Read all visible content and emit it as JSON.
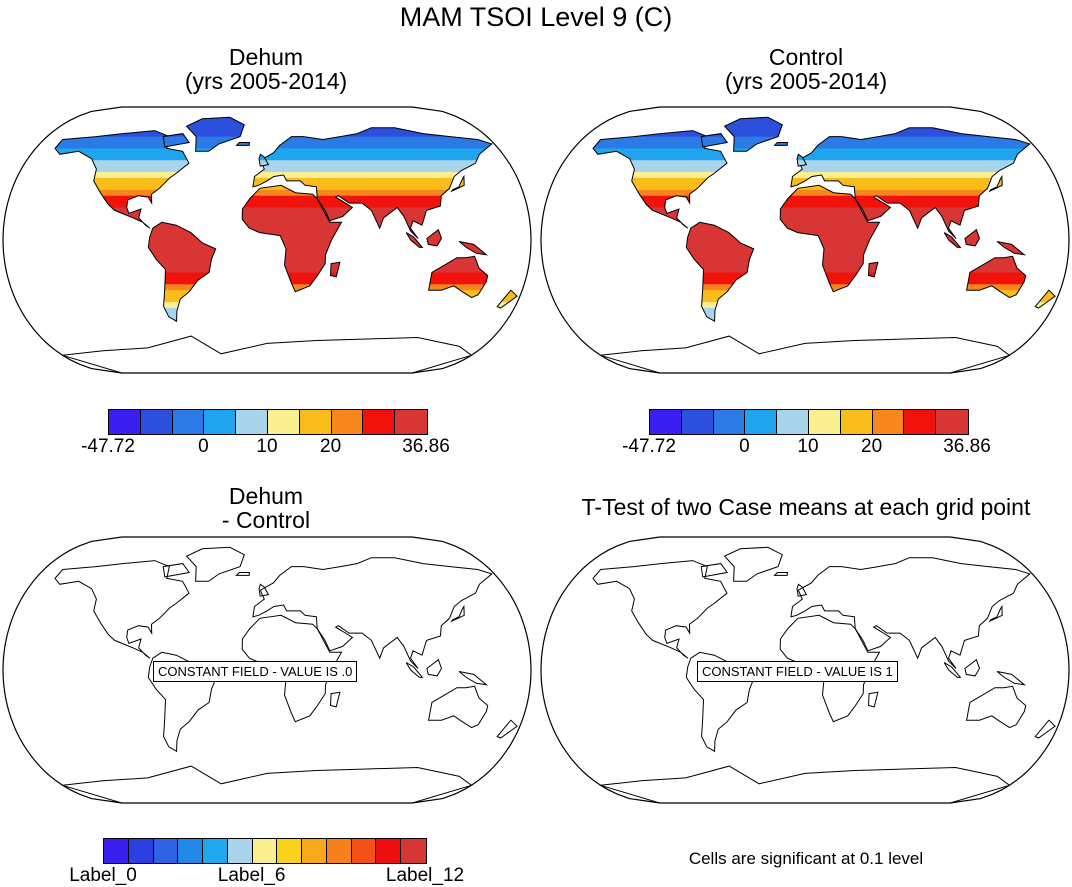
{
  "title": "MAM TSOI Level 9 (C)",
  "panels": [
    {
      "title_line1": "Dehum",
      "title_line2": "(yrs 2005-2014)"
    },
    {
      "title_line1": "Control",
      "title_line2": "(yrs 2005-2014)"
    },
    {
      "title_line1": "Dehum",
      "title_line2": "- Control",
      "constant_label": "CONSTANT FIELD - VALUE IS .0"
    },
    {
      "title_line1": "T-Test of two Case means at each grid point",
      "constant_label": "CONSTANT FIELD - VALUE IS 1"
    }
  ],
  "colorbar_top": {
    "colors": [
      "#3a1ff0",
      "#2c4fdd",
      "#2b7ae6",
      "#1fa4ee",
      "#a8d4ec",
      "#fbf08f",
      "#f9bd1b",
      "#f7861d",
      "#f2120c",
      "#d83535"
    ],
    "labels": [
      "-47.72",
      "0",
      "10",
      "20",
      "36.86"
    ],
    "label_slots": [
      0,
      3,
      5,
      7,
      10
    ]
  },
  "colorbar_diff": {
    "colors": [
      "#3a1ff0",
      "#2c3fe0",
      "#2f63e3",
      "#2288e6",
      "#1fa8ee",
      "#a8d4ec",
      "#fbf08f",
      "#f9d21b",
      "#f9a81b",
      "#f7801d",
      "#f4501a",
      "#ee1010",
      "#d83535"
    ],
    "labels": [
      "Label_0",
      "Label_6",
      "Label_12"
    ],
    "label_slots": [
      0,
      6,
      13
    ]
  },
  "footnote": "Cells are significant at 0.1 level"
}
